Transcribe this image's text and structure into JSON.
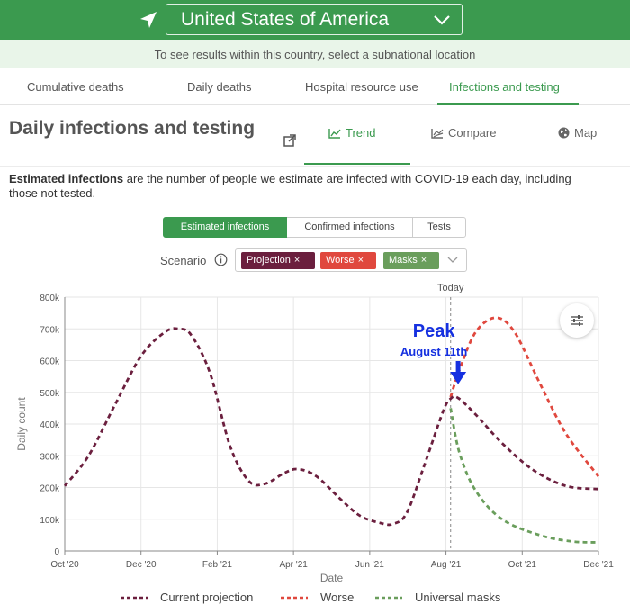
{
  "header": {
    "country": "United States of America",
    "location_icon": "location-arrow-icon",
    "chevron_icon": "chevron-down-icon"
  },
  "subnational_hint": "To see results within this country, select a subnational location",
  "tabs": [
    {
      "label": "Cumulative deaths",
      "active": false
    },
    {
      "label": "Daily deaths",
      "active": false
    },
    {
      "label": "Hospital resource use",
      "active": false
    },
    {
      "label": "Infections and testing",
      "active": true
    }
  ],
  "section": {
    "title": "Daily infections and testing",
    "external_icon": "external-link-icon",
    "views": [
      {
        "label": "Trend",
        "icon": "trend-icon",
        "active": true
      },
      {
        "label": "Compare",
        "icon": "compare-icon",
        "active": false
      },
      {
        "label": "Map",
        "icon": "globe-icon",
        "active": false
      }
    ],
    "description_bold": "Estimated infections",
    "description_rest": " are the number of people we estimate are infected with COVID-19 each day, including those not tested."
  },
  "metric_toggle": [
    {
      "label": "Estimated infections",
      "active": true
    },
    {
      "label": "Confirmed infections",
      "active": false
    },
    {
      "label": "Tests",
      "active": false
    }
  ],
  "scenario": {
    "label": "Scenario",
    "info_icon": "info-icon",
    "chips": [
      {
        "label": "Projection",
        "color": "#6b1f3e"
      },
      {
        "label": "Worse",
        "color": "#e0483e"
      },
      {
        "label": "Masks",
        "color": "#6a9e5c"
      }
    ],
    "close_glyph": "×"
  },
  "settings_icon": "sliders-icon",
  "colors": {
    "brand_green": "#3b9a4f",
    "projection": "#6b1f3e",
    "worse": "#e0483e",
    "masks": "#6a9e5c",
    "annotation": "#1530e0"
  },
  "chart_data": {
    "type": "line",
    "xlabel": "Date",
    "ylabel": "Daily count",
    "x_ticks": [
      "Oct '20",
      "Dec '20",
      "Feb '21",
      "Apr '21",
      "Jun '21",
      "Aug '21",
      "Oct '21",
      "Dec '21"
    ],
    "y_ticks": [
      "0",
      "100k",
      "200k",
      "300k",
      "400k",
      "500k",
      "600k",
      "700k",
      "800k"
    ],
    "ylim": [
      0,
      800000
    ],
    "xlim": [
      "2020-10-01",
      "2021-12-01"
    ],
    "today": "2021-08-05",
    "today_label": "Today",
    "grid": true,
    "legend_position": "bottom",
    "annotation": {
      "title": "Peak",
      "subtitle": "August 11th",
      "x": "2021-08-11",
      "y": 480000
    },
    "series": [
      {
        "name": "Current projection",
        "style": "dashed",
        "points": [
          [
            "2020-10-01",
            205000
          ],
          [
            "2020-10-20",
            300000
          ],
          [
            "2020-11-10",
            460000
          ],
          [
            "2020-12-01",
            615000
          ],
          [
            "2020-12-20",
            690000
          ],
          [
            "2020-12-31",
            700000
          ],
          [
            "2021-01-10",
            680000
          ],
          [
            "2021-01-25",
            560000
          ],
          [
            "2021-02-10",
            330000
          ],
          [
            "2021-02-25",
            220000
          ],
          [
            "2021-03-10",
            212000
          ],
          [
            "2021-03-25",
            245000
          ],
          [
            "2021-04-05",
            258000
          ],
          [
            "2021-04-20",
            235000
          ],
          [
            "2021-05-10",
            160000
          ],
          [
            "2021-05-25",
            110000
          ],
          [
            "2021-06-10",
            88000
          ],
          [
            "2021-06-20",
            85000
          ],
          [
            "2021-07-01",
            120000
          ],
          [
            "2021-07-15",
            270000
          ],
          [
            "2021-07-30",
            440000
          ],
          [
            "2021-08-05",
            480000
          ],
          [
            "2021-08-11",
            482000
          ],
          [
            "2021-08-25",
            430000
          ],
          [
            "2021-09-15",
            340000
          ],
          [
            "2021-10-10",
            255000
          ],
          [
            "2021-11-05",
            205000
          ],
          [
            "2021-12-01",
            195000
          ]
        ]
      },
      {
        "name": "Worse",
        "style": "dashed",
        "points": [
          [
            "2021-08-05",
            485000
          ],
          [
            "2021-08-12",
            570000
          ],
          [
            "2021-08-25",
            690000
          ],
          [
            "2021-09-10",
            735000
          ],
          [
            "2021-09-25",
            690000
          ],
          [
            "2021-10-15",
            530000
          ],
          [
            "2021-11-05",
            370000
          ],
          [
            "2021-12-01",
            235000
          ]
        ]
      },
      {
        "name": "Universal masks",
        "style": "dashed",
        "points": [
          [
            "2021-08-05",
            450000
          ],
          [
            "2021-08-12",
            310000
          ],
          [
            "2021-08-25",
            190000
          ],
          [
            "2021-09-15",
            100000
          ],
          [
            "2021-10-15",
            50000
          ],
          [
            "2021-11-10",
            30000
          ],
          [
            "2021-12-01",
            27000
          ]
        ]
      }
    ]
  }
}
